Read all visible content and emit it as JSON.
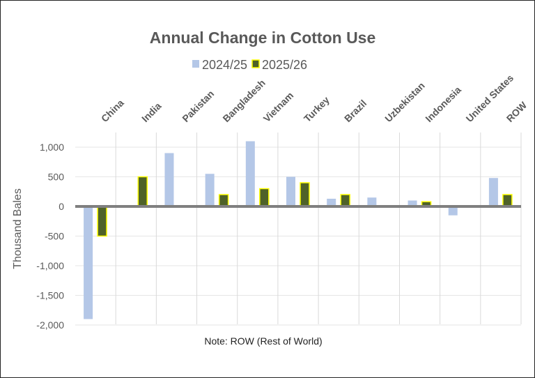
{
  "chart_data": {
    "type": "bar",
    "title": "Annual Change in Cotton Use",
    "ylabel": "Thousand Bales",
    "xlabel": "",
    "note": "Note: ROW (Rest of World)",
    "categories": [
      "China",
      "India",
      "Pakistan",
      "Bangladesh",
      "Vietnam",
      "Turkey",
      "Brazil",
      "Uzbekistan",
      "Indonesia",
      "United States",
      "ROW"
    ],
    "series": [
      {
        "name": "2024/25",
        "color": "#b4c7e7",
        "values": [
          -1900,
          0,
          900,
          550,
          1100,
          500,
          130,
          150,
          100,
          -150,
          480
        ]
      },
      {
        "name": "2025/26",
        "color": "#4f6228",
        "outline": "#ffff00",
        "values": [
          -500,
          500,
          0,
          200,
          300,
          400,
          200,
          0,
          80,
          0,
          200
        ]
      }
    ],
    "ylim": [
      -2000,
      1000
    ],
    "yticks": [
      1000,
      500,
      0,
      -500,
      -1000,
      -1500,
      -2000
    ],
    "ytick_labels": [
      "1,000",
      "500",
      "0",
      "-500",
      "-1,000",
      "-1,500",
      "-2,000"
    ],
    "legend_placement": "top",
    "grid": true,
    "category_labels_position": "top-rotated"
  }
}
